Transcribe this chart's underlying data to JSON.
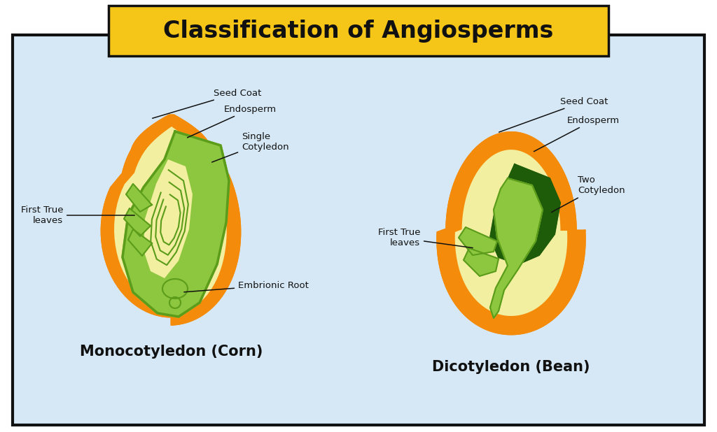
{
  "title": "Classification of Angiosperms",
  "title_bg_color": "#F5C518",
  "title_border_color": "#111111",
  "main_bg_color": "#D6E8F5",
  "main_border_color": "#111111",
  "page_bg_color": "#ffffff",
  "label_left": "Monocotyledon (Corn)",
  "label_right": "Dicotyledon (Bean)",
  "orange_color": "#F58B0A",
  "yellow_inner": "#F2EFA0",
  "light_green": "#8DC63F",
  "mid_green": "#5B9C1A",
  "dark_green": "#1E5C0A",
  "line_color": "#111111",
  "text_color": "#111111",
  "annotation_fontsize": 9.5,
  "label_fontsize": 15
}
